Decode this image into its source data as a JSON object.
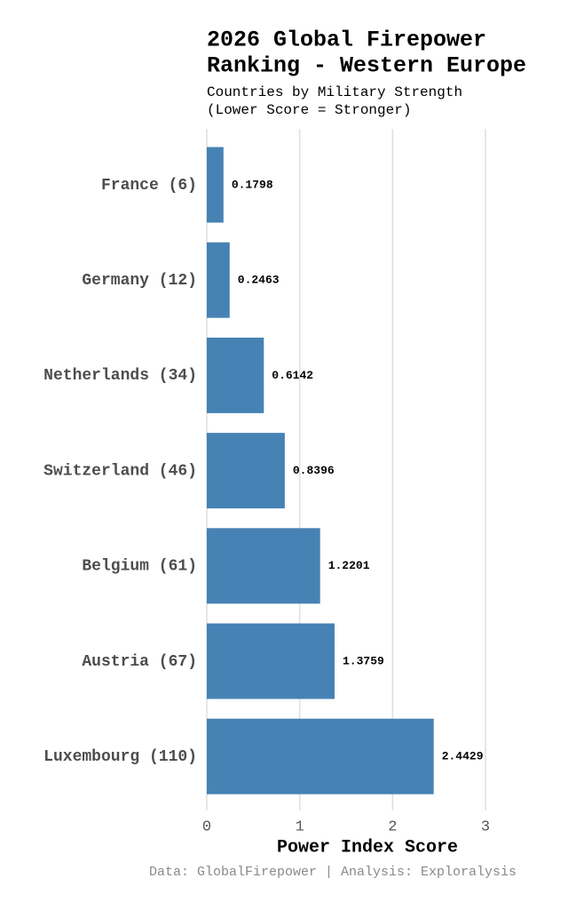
{
  "chart_data": {
    "type": "barh",
    "title": [
      "2026 Global Firepower",
      "Ranking - Western Europe"
    ],
    "subtitle": [
      "Countries by Military Strength",
      "(Lower Score = Stronger)"
    ],
    "categories": [
      "France (6)",
      "Germany (12)",
      "Netherlands (34)",
      "Switzerland (46)",
      "Belgium (61)",
      "Austria (67)",
      "Luxembourg (110)"
    ],
    "values": [
      0.1798,
      0.2463,
      0.6142,
      0.8396,
      1.2201,
      1.3759,
      2.4429
    ],
    "color": "#4682b4",
    "xlim": [
      0,
      3
    ],
    "xticks": [
      0,
      1,
      2,
      3
    ],
    "xlabel": "Power Index Score",
    "caption": "Data: GlobalFirepower | Analysis: Exploralysis",
    "grid": true
  }
}
